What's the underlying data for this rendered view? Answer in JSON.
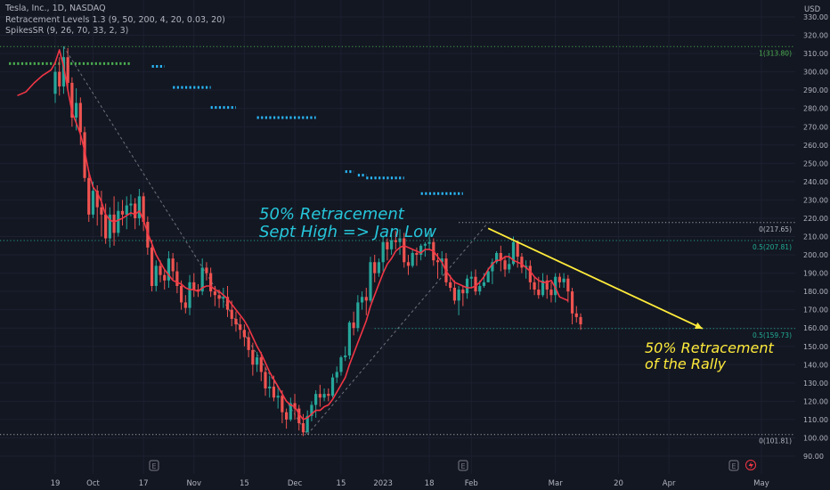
{
  "legend": {
    "symbol_line": "Tesla, Inc., 1D, NASDAQ",
    "indicator_1": "Retracement Levels 1.3 (9, 50, 200, 4, 20, 0.03, 20)",
    "indicator_2": "SpikesSR (9, 26, 70, 33, 2, 3)"
  },
  "annotations": {
    "top_line1": "50% Retracement",
    "top_line2": "Sept High => Jan Low",
    "bottom_line1": "50% Retracement",
    "bottom_line2": "of the Rally"
  },
  "colors": {
    "background": "#131722",
    "up": "#26a69a",
    "down": "#ef5350",
    "ma": "#f23645",
    "annotation_cyan": "#26c6da",
    "annotation_yellow": "#ffeb3b",
    "fib_green": "#4caf50",
    "fib_teal": "#22ab94",
    "fib_white": "#b2b5be",
    "spikes_dots": "#29b6f6"
  },
  "chart_data": {
    "type": "candlestick",
    "y_axis": {
      "unit_label": "USD",
      "ylim": [
        88,
        333
      ],
      "ticks": [
        "330.00",
        "320.00",
        "310.00",
        "300.00",
        "290.00",
        "280.00",
        "270.00",
        "260.00",
        "250.00",
        "240.00",
        "230.00",
        "220.00",
        "210.00",
        "200.00",
        "190.00",
        "180.00",
        "170.00",
        "160.00",
        "150.00",
        "140.00",
        "130.00",
        "120.00",
        "110.00",
        "100.00",
        "90.00"
      ]
    },
    "x_axis": {
      "ticks": [
        "19",
        "Oct",
        "17",
        "Nov",
        "15",
        "Dec",
        "15",
        "2023",
        "18",
        "Feb",
        "Mar",
        "20",
        "Apr",
        "May"
      ],
      "tick_index": [
        0,
        9,
        21,
        33,
        45,
        57,
        68,
        78,
        89,
        99,
        119,
        134,
        146,
        168
      ]
    },
    "fib_levels": [
      {
        "label": "1(313.80)",
        "value": 313.8,
        "start_index": -1,
        "color": "green"
      },
      {
        "label": "0(217.65)",
        "value": 217.65,
        "start_index": 96,
        "color": "white"
      },
      {
        "label": "0.5(207.81)",
        "value": 207.81,
        "start_index": -1,
        "color": "teal"
      },
      {
        "label": "0.5(159.73)",
        "value": 159.73,
        "start_index": 76,
        "color": "teal"
      },
      {
        "label": "0(101.81)",
        "value": 101.81,
        "start_index": -1,
        "color": "white"
      }
    ],
    "spike_levels": [
      {
        "value": 304.5,
        "from": -11,
        "to": 18,
        "color": "green"
      },
      {
        "value": 303,
        "from": 23,
        "to": 26,
        "color": "blue"
      },
      {
        "value": 291.5,
        "from": 28,
        "to": 37,
        "color": "blue"
      },
      {
        "value": 280.5,
        "from": 37,
        "to": 43,
        "color": "blue"
      },
      {
        "value": 275,
        "from": 48,
        "to": 62,
        "color": "blue"
      },
      {
        "value": 245.5,
        "from": 69,
        "to": 71,
        "color": "blue"
      },
      {
        "value": 243.5,
        "from": 72,
        "to": 74,
        "color": "blue"
      },
      {
        "value": 242,
        "from": 74,
        "to": 83,
        "color": "blue"
      },
      {
        "value": 233.5,
        "from": 87,
        "to": 97,
        "color": "blue"
      }
    ],
    "projection": {
      "from_index": 103,
      "from_value": 214.5,
      "to_index": 154,
      "to_value": 159.7
    },
    "candles": [
      [
        288,
        300,
        303,
        283
      ],
      [
        300,
        292,
        308,
        287
      ],
      [
        292,
        308,
        314,
        288
      ],
      [
        308,
        294,
        313,
        290
      ],
      [
        294,
        275,
        297,
        270
      ],
      [
        275,
        283,
        291,
        268
      ],
      [
        283,
        267,
        286,
        260
      ],
      [
        267,
        242,
        270,
        240
      ],
      [
        242,
        222,
        246,
        218
      ],
      [
        222,
        235,
        240,
        220
      ],
      [
        235,
        226,
        238,
        216
      ],
      [
        226,
        222,
        235,
        210
      ],
      [
        222,
        209,
        228,
        206
      ],
      [
        209,
        222,
        226,
        204
      ],
      [
        222,
        212,
        232,
        205
      ],
      [
        212,
        224,
        229,
        210
      ],
      [
        224,
        222,
        230,
        216
      ],
      [
        222,
        227,
        232,
        214
      ],
      [
        227,
        228,
        233,
        221
      ],
      [
        228,
        220,
        231,
        214
      ],
      [
        220,
        232,
        236,
        216
      ],
      [
        232,
        218,
        234,
        213
      ],
      [
        218,
        204,
        221,
        200
      ],
      [
        204,
        183,
        208,
        180
      ],
      [
        183,
        194,
        197,
        180
      ],
      [
        194,
        189,
        197,
        185
      ],
      [
        189,
        186,
        192,
        181
      ],
      [
        186,
        198,
        202,
        182
      ],
      [
        198,
        191,
        201,
        186
      ],
      [
        191,
        183,
        196,
        179
      ],
      [
        183,
        174,
        186,
        170
      ],
      [
        174,
        171,
        178,
        168
      ],
      [
        171,
        185,
        189,
        167
      ],
      [
        185,
        181,
        190,
        177
      ],
      [
        181,
        180,
        184,
        177
      ],
      [
        180,
        193,
        198,
        178
      ],
      [
        193,
        190,
        196,
        186
      ],
      [
        190,
        180,
        193,
        177
      ],
      [
        180,
        178,
        183,
        172
      ],
      [
        178,
        176,
        181,
        171
      ],
      [
        176,
        177,
        182,
        171
      ],
      [
        177,
        170,
        183,
        166
      ],
      [
        170,
        165,
        175,
        161
      ],
      [
        165,
        162,
        169,
        158
      ],
      [
        162,
        159,
        166,
        154
      ],
      [
        159,
        155,
        162,
        150
      ],
      [
        155,
        148,
        158,
        144
      ],
      [
        148,
        140,
        152,
        134
      ],
      [
        140,
        144,
        147,
        136
      ],
      [
        144,
        136,
        147,
        131
      ],
      [
        136,
        127,
        139,
        123
      ],
      [
        127,
        128,
        134,
        122
      ],
      [
        128,
        122,
        134,
        120
      ],
      [
        122,
        123,
        127,
        116
      ],
      [
        123,
        114,
        126,
        108
      ],
      [
        114,
        110,
        116,
        105
      ],
      [
        110,
        119,
        122,
        109
      ],
      [
        119,
        116,
        124,
        110
      ],
      [
        116,
        108,
        118,
        104
      ],
      [
        108,
        103,
        113,
        101
      ],
      [
        103,
        112,
        115,
        103
      ],
      [
        112,
        118,
        120,
        109
      ],
      [
        118,
        124,
        126,
        111
      ],
      [
        124,
        122,
        129,
        117
      ],
      [
        122,
        124,
        127,
        120
      ],
      [
        124,
        123,
        127,
        120
      ],
      [
        123,
        133,
        135,
        122
      ],
      [
        133,
        136,
        139,
        130
      ],
      [
        136,
        144,
        145,
        134
      ],
      [
        144,
        145,
        150,
        142
      ],
      [
        145,
        163,
        164,
        143
      ],
      [
        163,
        160,
        169,
        156
      ],
      [
        160,
        174,
        178,
        158
      ],
      [
        174,
        177,
        180,
        170
      ],
      [
        177,
        175,
        182,
        167
      ],
      [
        175,
        196,
        199,
        174
      ],
      [
        196,
        190,
        200,
        185
      ],
      [
        190,
        196,
        198,
        188
      ],
      [
        196,
        207,
        210,
        191
      ],
      [
        207,
        203,
        209,
        197
      ],
      [
        203,
        208,
        211,
        200
      ],
      [
        208,
        207,
        213,
        203
      ],
      [
        207,
        209,
        214,
        200
      ],
      [
        209,
        196,
        212,
        193
      ],
      [
        196,
        194,
        200,
        189
      ],
      [
        194,
        201,
        203,
        193
      ],
      [
        201,
        200,
        204,
        194
      ],
      [
        200,
        205,
        206,
        197
      ],
      [
        205,
        206,
        207,
        199
      ],
      [
        206,
        207,
        212,
        203
      ],
      [
        207,
        197,
        209,
        194
      ],
      [
        197,
        196,
        201,
        187
      ],
      [
        196,
        198,
        202,
        189
      ],
      [
        198,
        185,
        201,
        183
      ],
      [
        185,
        182,
        189,
        180
      ],
      [
        182,
        175,
        186,
        173
      ],
      [
        175,
        181,
        183,
        167
      ],
      [
        181,
        179,
        183,
        172
      ],
      [
        179,
        187,
        189,
        176
      ],
      [
        187,
        188,
        191,
        182
      ],
      [
        188,
        180,
        192,
        178
      ],
      [
        180,
        183,
        186,
        178
      ],
      [
        183,
        185,
        190,
        182
      ],
      [
        185,
        191,
        193,
        185
      ],
      [
        191,
        196,
        198,
        184
      ],
      [
        196,
        201,
        202,
        195
      ],
      [
        201,
        197,
        205,
        191
      ],
      [
        197,
        192,
        199,
        188
      ],
      [
        192,
        195,
        201,
        190
      ],
      [
        195,
        207,
        210,
        194
      ],
      [
        207,
        199,
        208,
        193
      ],
      [
        199,
        193,
        201,
        190
      ],
      [
        193,
        194,
        197,
        187
      ],
      [
        194,
        185,
        197,
        181
      ],
      [
        185,
        181,
        188,
        178
      ],
      [
        181,
        178,
        188,
        176
      ],
      [
        178,
        186,
        190,
        177
      ],
      [
        186,
        181,
        189,
        176
      ],
      [
        181,
        178,
        185,
        174
      ],
      [
        178,
        188,
        190,
        174
      ],
      [
        188,
        185,
        190,
        182
      ],
      [
        185,
        187,
        190,
        182
      ],
      [
        187,
        180,
        189,
        174
      ],
      [
        180,
        168,
        182,
        162
      ],
      [
        168,
        166,
        172,
        163
      ],
      [
        166,
        162,
        168,
        159
      ]
    ],
    "ma": [
      [
        -9,
        287
      ],
      [
        -7,
        289
      ],
      [
        -5,
        294
      ],
      [
        -3,
        298
      ],
      [
        -1,
        301
      ],
      [
        0,
        305
      ],
      [
        1,
        312
      ],
      [
        2,
        303
      ],
      [
        3,
        290
      ],
      [
        4,
        278
      ],
      [
        5,
        272
      ],
      [
        6,
        266
      ],
      [
        7,
        257
      ],
      [
        8,
        245
      ],
      [
        9,
        237
      ],
      [
        10,
        234
      ],
      [
        11,
        229
      ],
      [
        12,
        222
      ],
      [
        13,
        219
      ],
      [
        14,
        218
      ],
      [
        16,
        220
      ],
      [
        18,
        223
      ],
      [
        19,
        222
      ],
      [
        20,
        224
      ],
      [
        21,
        219
      ],
      [
        22,
        212
      ],
      [
        23,
        206
      ],
      [
        24,
        200
      ],
      [
        25,
        196
      ],
      [
        26,
        192
      ],
      [
        27,
        189
      ],
      [
        28,
        186
      ],
      [
        29,
        185
      ],
      [
        30,
        184
      ],
      [
        31,
        182
      ],
      [
        32,
        181
      ],
      [
        33,
        181
      ],
      [
        34,
        180
      ],
      [
        35,
        182
      ],
      [
        36,
        183
      ],
      [
        37,
        183
      ],
      [
        38,
        181
      ],
      [
        39,
        180
      ],
      [
        40,
        178
      ],
      [
        41,
        176
      ],
      [
        42,
        173
      ],
      [
        43,
        170
      ],
      [
        44,
        167
      ],
      [
        45,
        164
      ],
      [
        46,
        160
      ],
      [
        47,
        155
      ],
      [
        48,
        150
      ],
      [
        49,
        146
      ],
      [
        50,
        141
      ],
      [
        51,
        136
      ],
      [
        52,
        132
      ],
      [
        53,
        128
      ],
      [
        54,
        124
      ],
      [
        55,
        120
      ],
      [
        56,
        118
      ],
      [
        57,
        117
      ],
      [
        58,
        113
      ],
      [
        59,
        110
      ],
      [
        60,
        111
      ],
      [
        61,
        113
      ],
      [
        62,
        115
      ],
      [
        63,
        115
      ],
      [
        64,
        117
      ],
      [
        65,
        118
      ],
      [
        66,
        121
      ],
      [
        67,
        125
      ],
      [
        68,
        129
      ],
      [
        69,
        133
      ],
      [
        70,
        140
      ],
      [
        71,
        146
      ],
      [
        72,
        152
      ],
      [
        73,
        158
      ],
      [
        74,
        164
      ],
      [
        75,
        172
      ],
      [
        76,
        178
      ],
      [
        77,
        184
      ],
      [
        78,
        190
      ],
      [
        79,
        195
      ],
      [
        80,
        198
      ],
      [
        81,
        202
      ],
      [
        82,
        204
      ],
      [
        83,
        205
      ],
      [
        84,
        204
      ],
      [
        85,
        203
      ],
      [
        86,
        202
      ],
      [
        87,
        201
      ],
      [
        88,
        203
      ],
      [
        89,
        203
      ],
      [
        90,
        202
      ],
      [
        91,
        199
      ],
      [
        92,
        196
      ],
      [
        93,
        191
      ],
      [
        94,
        188
      ],
      [
        95,
        185
      ],
      [
        96,
        184
      ],
      [
        97,
        183
      ],
      [
        98,
        182
      ],
      [
        99,
        182
      ],
      [
        100,
        183
      ],
      [
        101,
        185
      ],
      [
        102,
        188
      ],
      [
        103,
        192
      ],
      [
        104,
        195
      ],
      [
        105,
        197
      ],
      [
        106,
        197
      ],
      [
        107,
        199
      ],
      [
        108,
        199
      ],
      [
        109,
        197
      ],
      [
        110,
        196
      ],
      [
        111,
        195
      ],
      [
        112,
        193
      ],
      [
        113,
        191
      ],
      [
        114,
        188
      ],
      [
        115,
        186
      ],
      [
        116,
        185
      ],
      [
        117,
        185
      ],
      [
        118,
        186
      ],
      [
        119,
        182
      ],
      [
        120,
        177
      ],
      [
        121,
        176
      ],
      [
        122,
        175
      ]
    ]
  }
}
